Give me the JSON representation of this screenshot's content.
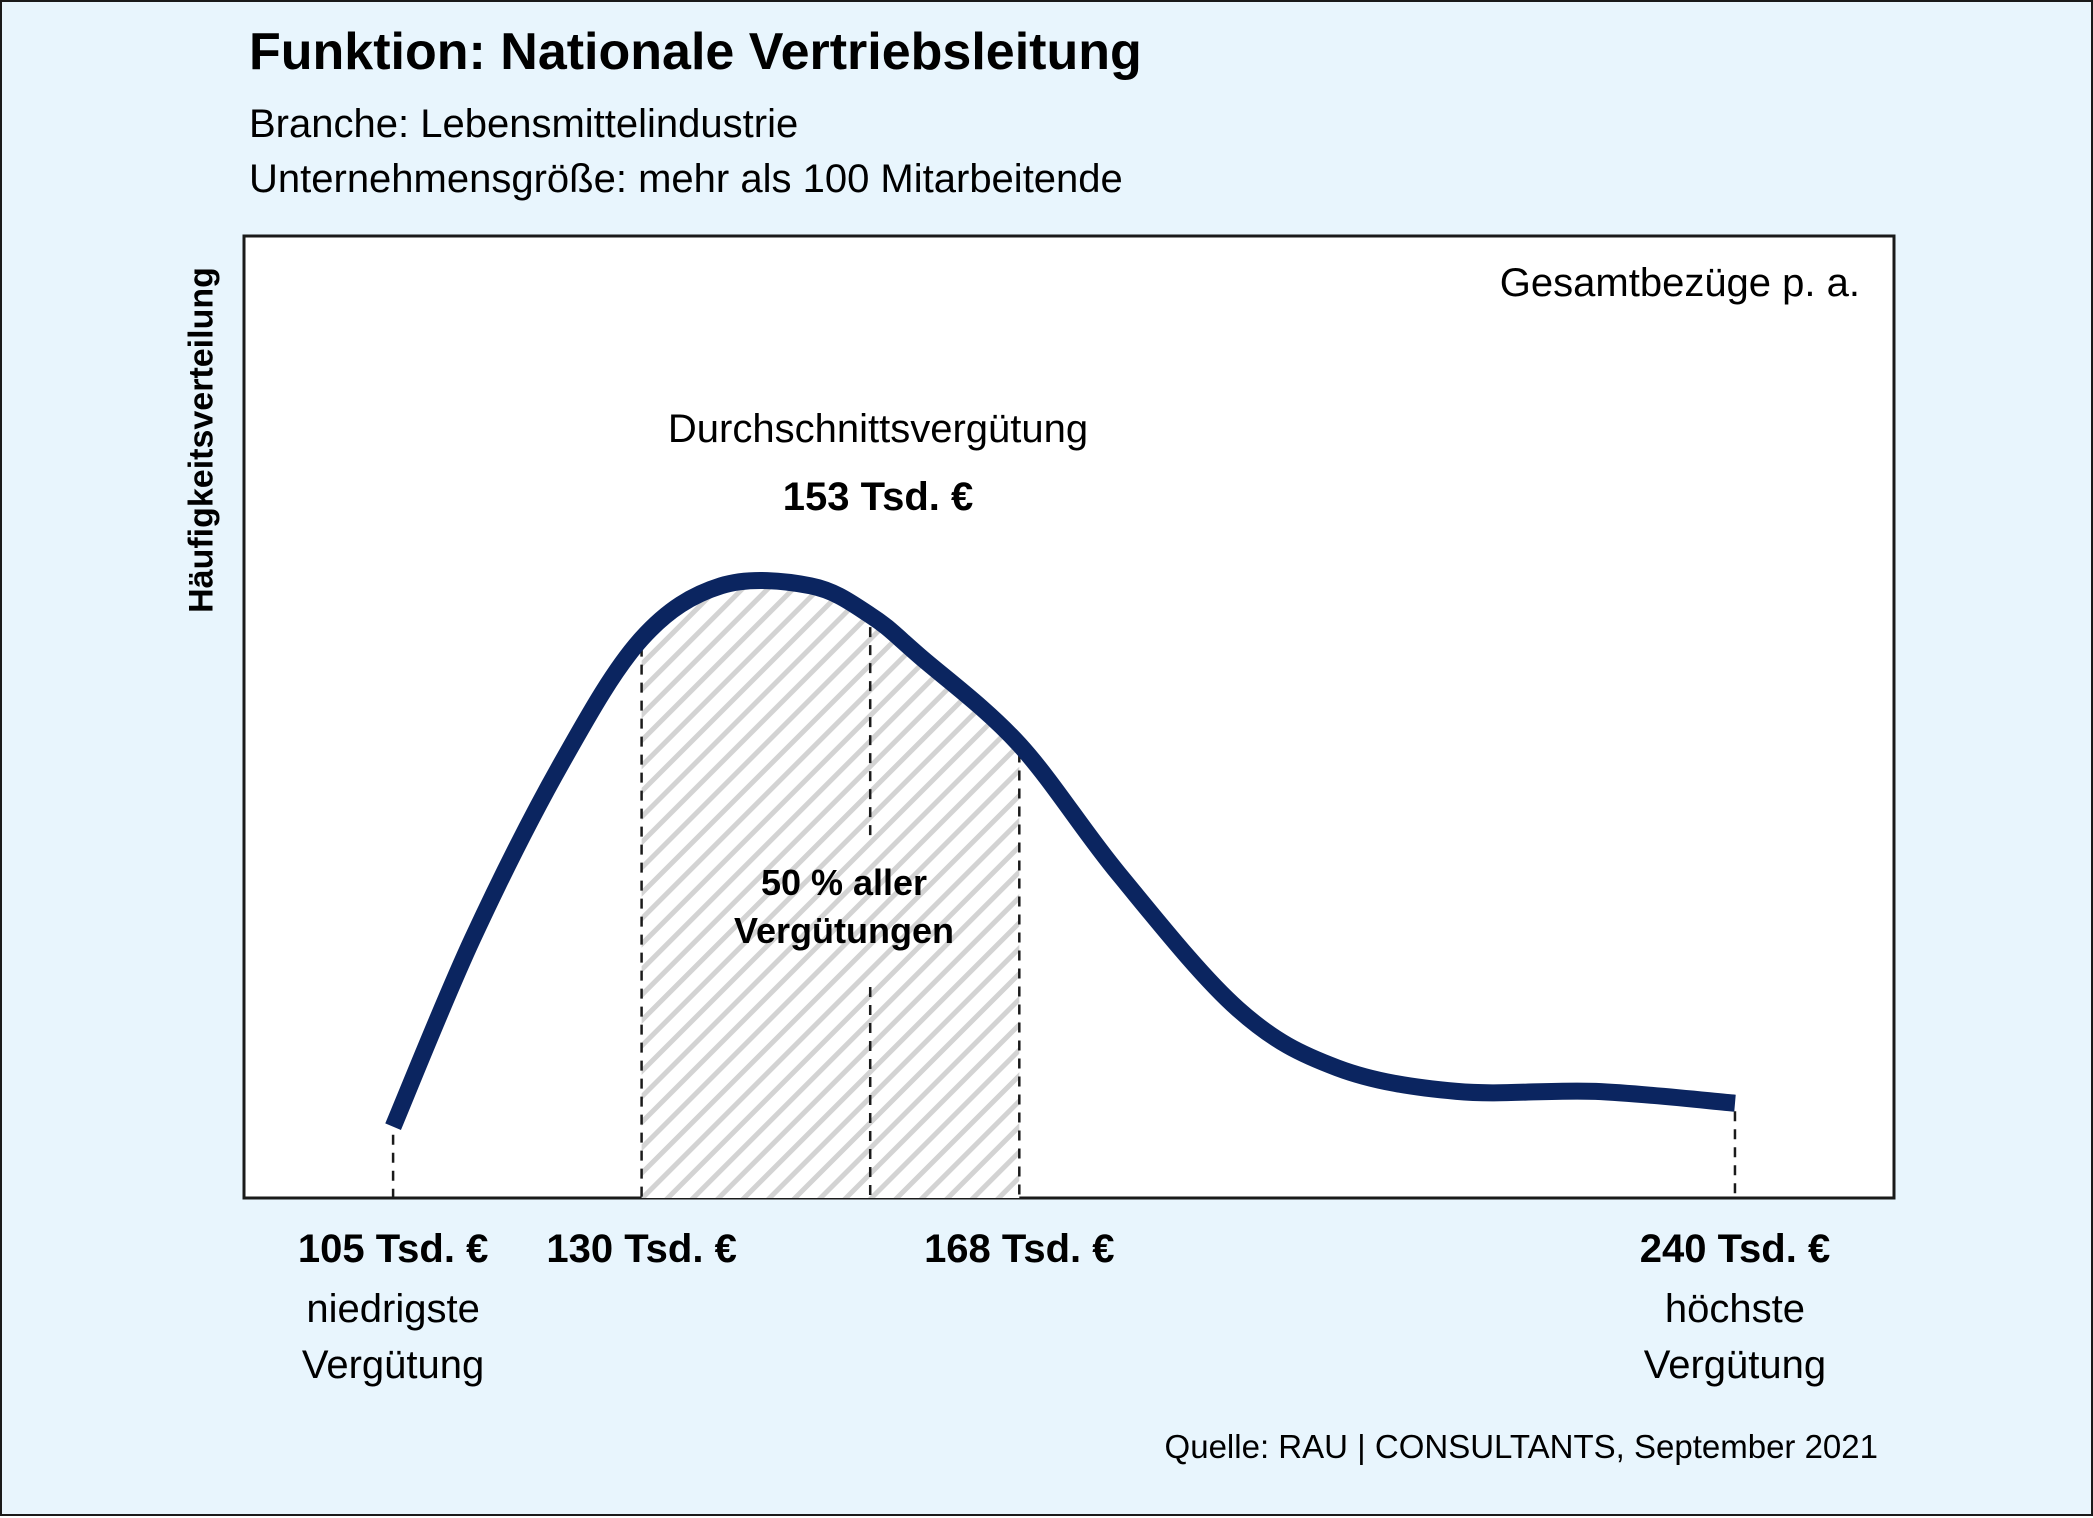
{
  "header": {
    "title": "Funktion: Nationale Vertriebsleitung",
    "subtitle_1": "Branche: Lebensmittelindustrie",
    "subtitle_2": "Unternehmensgröße: mehr als 100 Mitarbeitende"
  },
  "source": "Quelle: RAU | CONSULTANTS, September 2021",
  "colors": {
    "background": "#e8f5fd",
    "curve": "#0b2560",
    "hatch": "#d3d3d3"
  },
  "chart_data": {
    "type": "area",
    "ylabel": "Häufigkeitsverteilung",
    "corner_label": "Gesamtbezüge p. a.",
    "unit": "Tsd. €",
    "x_range": [
      90,
      256
    ],
    "curve": {
      "x": [
        105,
        113,
        122,
        130,
        138,
        147,
        153,
        158,
        168,
        178,
        190,
        200,
        212,
        226,
        240
      ],
      "y": [
        0.06,
        0.38,
        0.68,
        0.89,
        0.98,
        0.98,
        0.93,
        0.86,
        0.71,
        0.49,
        0.26,
        0.16,
        0.12,
        0.12,
        0.1
      ]
    },
    "markers": [
      {
        "x": 105,
        "value": "105 Tsd. €",
        "desc_1": "niedrigste",
        "desc_2": "Vergütung"
      },
      {
        "x": 130,
        "value": "130 Tsd. €"
      },
      {
        "x": 168,
        "value": "168 Tsd. €"
      },
      {
        "x": 240,
        "value": "240 Tsd. €",
        "desc_1": "höchste",
        "desc_2": "Vergütung"
      }
    ],
    "average": {
      "x": 153,
      "label": "Durchschnittsvergütung",
      "value": "153 Tsd. €"
    },
    "shaded_band": {
      "from": 130,
      "to": 168,
      "label_1": "50 % aller",
      "label_2": "Vergütungen"
    }
  }
}
